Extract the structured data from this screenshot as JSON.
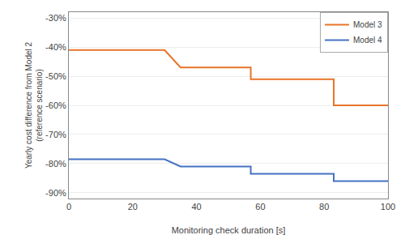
{
  "chart_data": {
    "type": "line",
    "xlabel": "Monitoring check duration [s]",
    "ylabel": "Yearly cost difference from Model 2\n(reference scenario)",
    "x": [
      0,
      30,
      30,
      35,
      35,
      57,
      57,
      62,
      62,
      83,
      83,
      87,
      87,
      100
    ],
    "series": [
      {
        "name": "Model 3",
        "color": "#e8742a",
        "values": [
          -41,
          -41,
          -41,
          -47,
          -47,
          -47,
          -51,
          -51,
          -51,
          -51,
          -60,
          -60,
          -60,
          -60
        ]
      },
      {
        "name": "Model 4",
        "color": "#4472c4",
        "values": [
          -78.5,
          -78.5,
          -78.5,
          -81,
          -81,
          -81,
          -83.5,
          -83.5,
          -83.5,
          -83.5,
          -86,
          -86,
          -86,
          -86
        ]
      }
    ],
    "xlim": [
      0,
      100
    ],
    "xticks": [
      0,
      20,
      40,
      60,
      80,
      100
    ],
    "ylim": [
      -92,
      -28
    ],
    "yticks": [
      {
        "value": -30,
        "label": "-30%"
      },
      {
        "value": -40,
        "label": "-40%"
      },
      {
        "value": -50,
        "label": "-50%"
      },
      {
        "value": -60,
        "label": "-60%"
      },
      {
        "value": -70,
        "label": "-70%"
      },
      {
        "value": -80,
        "label": "-80%"
      },
      {
        "value": -90,
        "label": "-90%"
      }
    ],
    "grid": "y",
    "legend": "upper right"
  }
}
